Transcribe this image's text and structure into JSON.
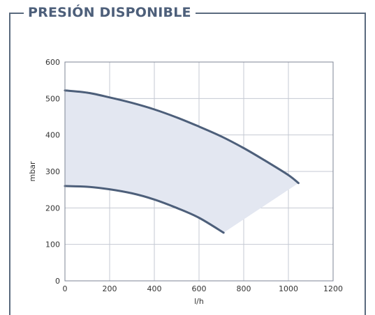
{
  "panel_title": "PRESIÓN DISPONIBLE",
  "colors": {
    "frame": "#5a6a7e",
    "curve": "#4d5f7a",
    "band": "#e3e7f1",
    "grid": "#c5c9d3",
    "title": "#4d5f7a"
  },
  "chart_data": {
    "type": "line",
    "title": "",
    "xlabel": "l/h",
    "ylabel": "mbar",
    "xlim": [
      0,
      1200
    ],
    "ylim": [
      0,
      600
    ],
    "xticks": [
      0,
      200,
      400,
      600,
      800,
      1000,
      1200
    ],
    "yticks": [
      0,
      100,
      200,
      300,
      400,
      500,
      600
    ],
    "grid": true,
    "series": [
      {
        "x": [
          0,
          100,
          200,
          300,
          400,
          500,
          600,
          700,
          800,
          900,
          1000,
          1045
        ],
        "y": [
          522,
          516,
          503,
          488,
          470,
          448,
          423,
          396,
          364,
          328,
          290,
          268
        ]
      },
      {
        "x": [
          0,
          100,
          200,
          300,
          400,
          500,
          600,
          710
        ],
        "y": [
          260,
          258,
          251,
          240,
          223,
          200,
          173,
          132
        ]
      }
    ],
    "shaded_region": {
      "between": [
        0,
        1
      ]
    }
  }
}
